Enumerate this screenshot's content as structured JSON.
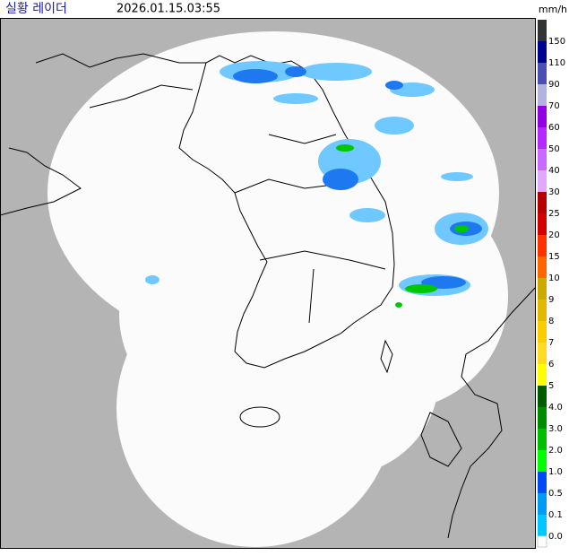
{
  "header": {
    "title": "실황 레이더",
    "timestamp": "2026.01.15.03:55",
    "unit": "mm/h"
  },
  "legend": {
    "items": [
      {
        "label": "150",
        "color": "#000390"
      },
      {
        "label": "110",
        "color": "#4c4eb1"
      },
      {
        "label": "90",
        "color": "#b3b4de"
      },
      {
        "label": "70",
        "color": "#9300e4"
      },
      {
        "label": "60",
        "color": "#b329ff"
      },
      {
        "label": "50",
        "color": "#c969ff"
      },
      {
        "label": "40",
        "color": "#e0a9ff"
      },
      {
        "label": "30",
        "color": "#b40000"
      },
      {
        "label": "25",
        "color": "#d20000"
      },
      {
        "label": "20",
        "color": "#ff3200"
      },
      {
        "label": "15",
        "color": "#ff6600"
      },
      {
        "label": "10",
        "color": "#ccaa00"
      },
      {
        "label": "9",
        "color": "#e0b900"
      },
      {
        "label": "8",
        "color": "#f9cd00"
      },
      {
        "label": "7",
        "color": "#ffdc1f"
      },
      {
        "label": "6",
        "color": "#ffff00"
      },
      {
        "label": "5",
        "color": "#005a00"
      },
      {
        "label": "4.0",
        "color": "#008c00"
      },
      {
        "label": "3.0",
        "color": "#00be00"
      },
      {
        "label": "2.0",
        "color": "#00ff00"
      },
      {
        "label": "1.0",
        "color": "#004af5"
      },
      {
        "label": "0.5",
        "color": "#009bf5"
      },
      {
        "label": "0.1",
        "color": "#00c8ff"
      },
      {
        "label": "0.0",
        "color": "#ffffff"
      }
    ],
    "top_color": "#333333"
  }
}
